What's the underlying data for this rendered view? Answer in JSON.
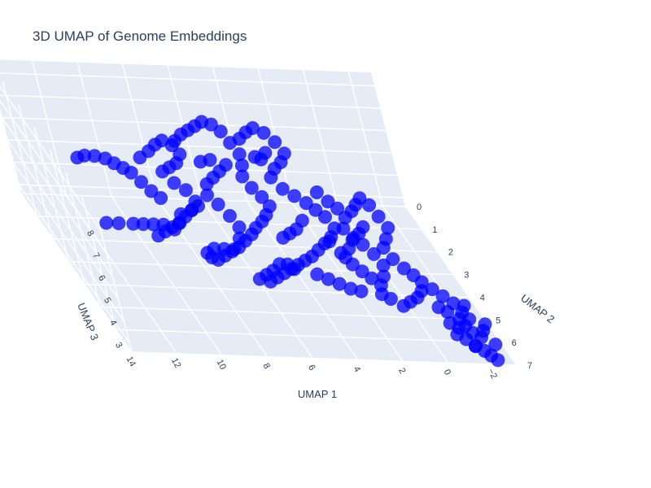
{
  "colors": {
    "marker": "#0000ff",
    "pane": "#e5ecf6",
    "grid": "#ffffff",
    "text": "#2a3f5f"
  },
  "chart_data": {
    "type": "scatter3d",
    "title": "3D UMAP of Genome Embeddings",
    "xlabel": "UMAP 1",
    "ylabel": "UMAP 2",
    "zlabel": "UMAP 3",
    "xlim": [
      -3,
      14
    ],
    "ylim": [
      0,
      7
    ],
    "zlim": [
      2.6,
      8.6
    ],
    "xticks": [
      "14",
      "12",
      "10",
      "8",
      "6",
      "4",
      "2",
      "0",
      "−2"
    ],
    "yticks": [
      "0",
      "1",
      "2",
      "3",
      "4",
      "5",
      "6",
      "7"
    ],
    "zticks": [
      "3",
      "4",
      "5",
      "6",
      "7",
      "8"
    ],
    "grid": true,
    "legend": "none",
    "marker_opacity": 0.75,
    "points": [
      [
        12.4,
        3.7,
        8.1
      ],
      [
        12.0,
        3.8,
        8.2
      ],
      [
        11.6,
        3.9,
        8.2
      ],
      [
        11.3,
        4.0,
        8.1
      ],
      [
        12.7,
        3.6,
        7.9
      ],
      [
        11.0,
        4.1,
        8.0
      ],
      [
        9.9,
        3.6,
        8.0
      ],
      [
        9.4,
        3.5,
        8.2
      ],
      [
        9.0,
        3.4,
        8.4
      ],
      [
        8.6,
        3.3,
        8.5
      ],
      [
        8.2,
        3.3,
        8.3
      ],
      [
        8.0,
        3.4,
        8.0
      ],
      [
        8.3,
        3.5,
        7.7
      ],
      [
        8.7,
        3.6,
        7.6
      ],
      [
        9.1,
        3.7,
        7.5
      ],
      [
        8.8,
        3.9,
        7.2
      ],
      [
        8.4,
        4.0,
        7.0
      ],
      [
        8.2,
        4.2,
        6.7
      ],
      [
        8.5,
        4.3,
        6.4
      ],
      [
        8.9,
        4.4,
        6.2
      ],
      [
        9.3,
        4.5,
        6.0
      ],
      [
        9.7,
        4.6,
        5.9
      ],
      [
        10.1,
        4.7,
        5.8
      ],
      [
        10.5,
        4.8,
        5.7
      ],
      [
        8.6,
        4.5,
        6.6
      ],
      [
        8.3,
        4.6,
        6.9
      ],
      [
        7.9,
        3.0,
        8.2
      ],
      [
        7.5,
        2.9,
        8.4
      ],
      [
        7.1,
        2.8,
        8.5
      ],
      [
        6.7,
        2.7,
        8.6
      ],
      [
        6.3,
        2.6,
        8.7
      ],
      [
        5.9,
        2.6,
        8.6
      ],
      [
        5.6,
        2.7,
        8.4
      ],
      [
        5.4,
        2.9,
        8.1
      ],
      [
        5.2,
        3.1,
        7.8
      ],
      [
        5.3,
        3.3,
        7.5
      ],
      [
        5.5,
        3.5,
        7.2
      ],
      [
        5.3,
        3.7,
        6.9
      ],
      [
        5.0,
        3.8,
        6.6
      ],
      [
        4.8,
        3.9,
        6.3
      ],
      [
        5.1,
        4.0,
        6.0
      ],
      [
        5.4,
        4.1,
        5.8
      ],
      [
        5.8,
        4.2,
        5.6
      ],
      [
        6.1,
        4.3,
        5.4
      ],
      [
        6.5,
        4.4,
        5.2
      ],
      [
        6.9,
        4.5,
        5.0
      ],
      [
        7.3,
        4.6,
        4.9
      ],
      [
        7.7,
        4.7,
        4.8
      ],
      [
        8.1,
        4.8,
        4.7
      ],
      [
        8.4,
        4.9,
        4.9
      ],
      [
        8.6,
        5.0,
        5.2
      ],
      [
        8.3,
        5.1,
        5.5
      ],
      [
        7.9,
        5.2,
        5.6
      ],
      [
        7.5,
        5.3,
        5.7
      ],
      [
        7.0,
        5.0,
        5.9
      ],
      [
        6.8,
        4.8,
        6.2
      ],
      [
        7.0,
        4.6,
        6.5
      ],
      [
        7.3,
        4.4,
        6.8
      ],
      [
        7.6,
        4.2,
        7.0
      ],
      [
        7.4,
        4.0,
        7.3
      ],
      [
        7.0,
        3.9,
        7.5
      ],
      [
        6.6,
        3.8,
        7.7
      ],
      [
        6.2,
        3.7,
        7.9
      ],
      [
        4.8,
        2.6,
        8.0
      ],
      [
        4.4,
        2.5,
        8.2
      ],
      [
        4.0,
        2.4,
        8.3
      ],
      [
        3.6,
        2.5,
        8.2
      ],
      [
        3.3,
        2.7,
        8.0
      ],
      [
        3.1,
        2.9,
        7.7
      ],
      [
        3.4,
        3.0,
        7.4
      ],
      [
        3.8,
        3.1,
        7.2
      ],
      [
        4.1,
        3.2,
        6.9
      ],
      [
        3.8,
        3.4,
        6.6
      ],
      [
        3.4,
        3.5,
        6.4
      ],
      [
        3.0,
        3.6,
        6.2
      ],
      [
        2.7,
        3.7,
        6.0
      ],
      [
        2.4,
        3.8,
        5.8
      ],
      [
        2.2,
        4.0,
        5.5
      ],
      [
        2.5,
        4.1,
        5.2
      ],
      [
        2.9,
        4.2,
        5.0
      ],
      [
        3.3,
        4.3,
        4.8
      ],
      [
        3.7,
        4.4,
        4.6
      ],
      [
        4.1,
        4.5,
        4.5
      ],
      [
        4.5,
        4.6,
        4.4
      ],
      [
        4.9,
        4.7,
        4.3
      ],
      [
        5.3,
        4.8,
        4.2
      ],
      [
        5.7,
        4.9,
        4.1
      ],
      [
        6.1,
        5.0,
        4.0
      ],
      [
        4.6,
        4.0,
        5.0
      ],
      [
        4.3,
        4.1,
        5.3
      ],
      [
        4.0,
        4.2,
        5.6
      ],
      [
        3.6,
        4.1,
        5.9
      ],
      [
        2.8,
        4.5,
        5.4
      ],
      [
        2.5,
        4.7,
        5.1
      ],
      [
        2.2,
        4.9,
        4.8
      ],
      [
        1.9,
        5.0,
        4.6
      ],
      [
        1.6,
        5.1,
        4.4
      ],
      [
        1.3,
        5.2,
        4.2
      ],
      [
        1.0,
        5.0,
        4.4
      ],
      [
        0.8,
        4.8,
        4.7
      ],
      [
        1.0,
        4.6,
        5.0
      ],
      [
        1.3,
        4.4,
        5.2
      ],
      [
        1.6,
        4.3,
        5.4
      ],
      [
        1.9,
        4.2,
        5.7
      ],
      [
        1.6,
        4.0,
        6.0
      ],
      [
        1.2,
        3.9,
        6.2
      ],
      [
        0.9,
        3.8,
        6.4
      ],
      [
        0.6,
        3.7,
        6.6
      ],
      [
        0.3,
        3.8,
        6.4
      ],
      [
        0.1,
        4.0,
        6.1
      ],
      [
        -0.1,
        4.2,
        5.8
      ],
      [
        0.2,
        4.4,
        5.5
      ],
      [
        0.5,
        4.6,
        5.3
      ],
      [
        0.3,
        4.8,
        5.0
      ],
      [
        0.0,
        5.0,
        4.8
      ],
      [
        -0.3,
        5.1,
        4.6
      ],
      [
        -0.5,
        5.3,
        4.5
      ],
      [
        -0.3,
        5.5,
        4.3
      ],
      [
        0.0,
        5.6,
        4.1
      ],
      [
        0.4,
        5.7,
        4.0
      ],
      [
        0.8,
        5.8,
        3.9
      ],
      [
        1.2,
        5.6,
        4.0
      ],
      [
        1.5,
        5.5,
        4.1
      ],
      [
        1.1,
        4.4,
        6.0
      ],
      [
        1.4,
        4.5,
        5.8
      ],
      [
        1.8,
        4.6,
        5.6
      ],
      [
        2.1,
        4.7,
        5.3
      ],
      [
        2.4,
        4.8,
        5.0
      ],
      [
        -0.8,
        5.5,
        4.4
      ],
      [
        -1.1,
        5.7,
        4.3
      ],
      [
        -1.4,
        5.9,
        4.2
      ],
      [
        -1.6,
        6.1,
        4.0
      ],
      [
        -1.8,
        6.2,
        3.8
      ],
      [
        -1.5,
        6.3,
        3.6
      ],
      [
        -1.2,
        6.3,
        3.5
      ],
      [
        -1.0,
        6.4,
        3.3
      ],
      [
        -1.3,
        6.5,
        3.2
      ],
      [
        -1.6,
        6.6,
        3.0
      ],
      [
        -1.9,
        6.7,
        2.9
      ],
      [
        -2.1,
        6.8,
        2.8
      ],
      [
        -2.3,
        6.9,
        2.7
      ],
      [
        -1.7,
        6.4,
        3.4
      ],
      [
        -2.0,
        6.5,
        3.3
      ],
      [
        -1.4,
        6.1,
        3.7
      ],
      [
        -1.0,
        6.0,
        3.9
      ],
      [
        -0.7,
        5.9,
        4.0
      ],
      [
        -2.2,
        6.4,
        3.5
      ],
      [
        -1.8,
        6.0,
        4.2
      ],
      [
        -2.5,
        6.6,
        3.1
      ],
      [
        -1.5,
        6.8,
        3.2
      ],
      [
        -0.9,
        6.2,
        3.6
      ],
      [
        -2.4,
        6.3,
        3.7
      ],
      [
        11.4,
        4.6,
        6.0
      ],
      [
        11.0,
        4.7,
        6.1
      ],
      [
        10.6,
        4.8,
        6.2
      ],
      [
        10.2,
        4.9,
        6.3
      ],
      [
        9.8,
        5.0,
        6.2
      ],
      [
        12.0,
        4.5,
        5.9
      ],
      [
        12.5,
        4.4,
        5.8
      ],
      [
        9.5,
        5.0,
        6.5
      ],
      [
        9.3,
        4.9,
        6.8
      ],
      [
        4.9,
        5.0,
        4.6
      ],
      [
        5.2,
        5.1,
        4.9
      ],
      [
        5.6,
        5.2,
        5.0
      ],
      [
        6.0,
        5.3,
        4.8
      ],
      [
        6.3,
        5.2,
        4.5
      ],
      [
        6.6,
        5.1,
        4.2
      ],
      [
        3.9,
        4.9,
        4.3
      ],
      [
        3.5,
        5.0,
        4.2
      ],
      [
        3.1,
        5.1,
        4.1
      ],
      [
        2.7,
        5.2,
        4.0
      ],
      [
        2.3,
        5.3,
        4.0
      ],
      [
        6.8,
        3.6,
        8.0
      ],
      [
        7.2,
        3.5,
        7.8
      ],
      [
        10.6,
        3.9,
        7.6
      ],
      [
        10.3,
        4.0,
        7.3
      ],
      [
        10.0,
        4.1,
        7.0
      ],
      [
        9.7,
        4.2,
        6.8
      ],
      [
        4.5,
        3.0,
        7.6
      ],
      [
        4.2,
        2.9,
        7.4
      ],
      [
        3.9,
        2.8,
        7.6
      ],
      [
        1.8,
        3.9,
        6.3
      ],
      [
        2.1,
        3.8,
        6.5
      ],
      [
        2.4,
        3.6,
        6.7
      ]
    ]
  }
}
